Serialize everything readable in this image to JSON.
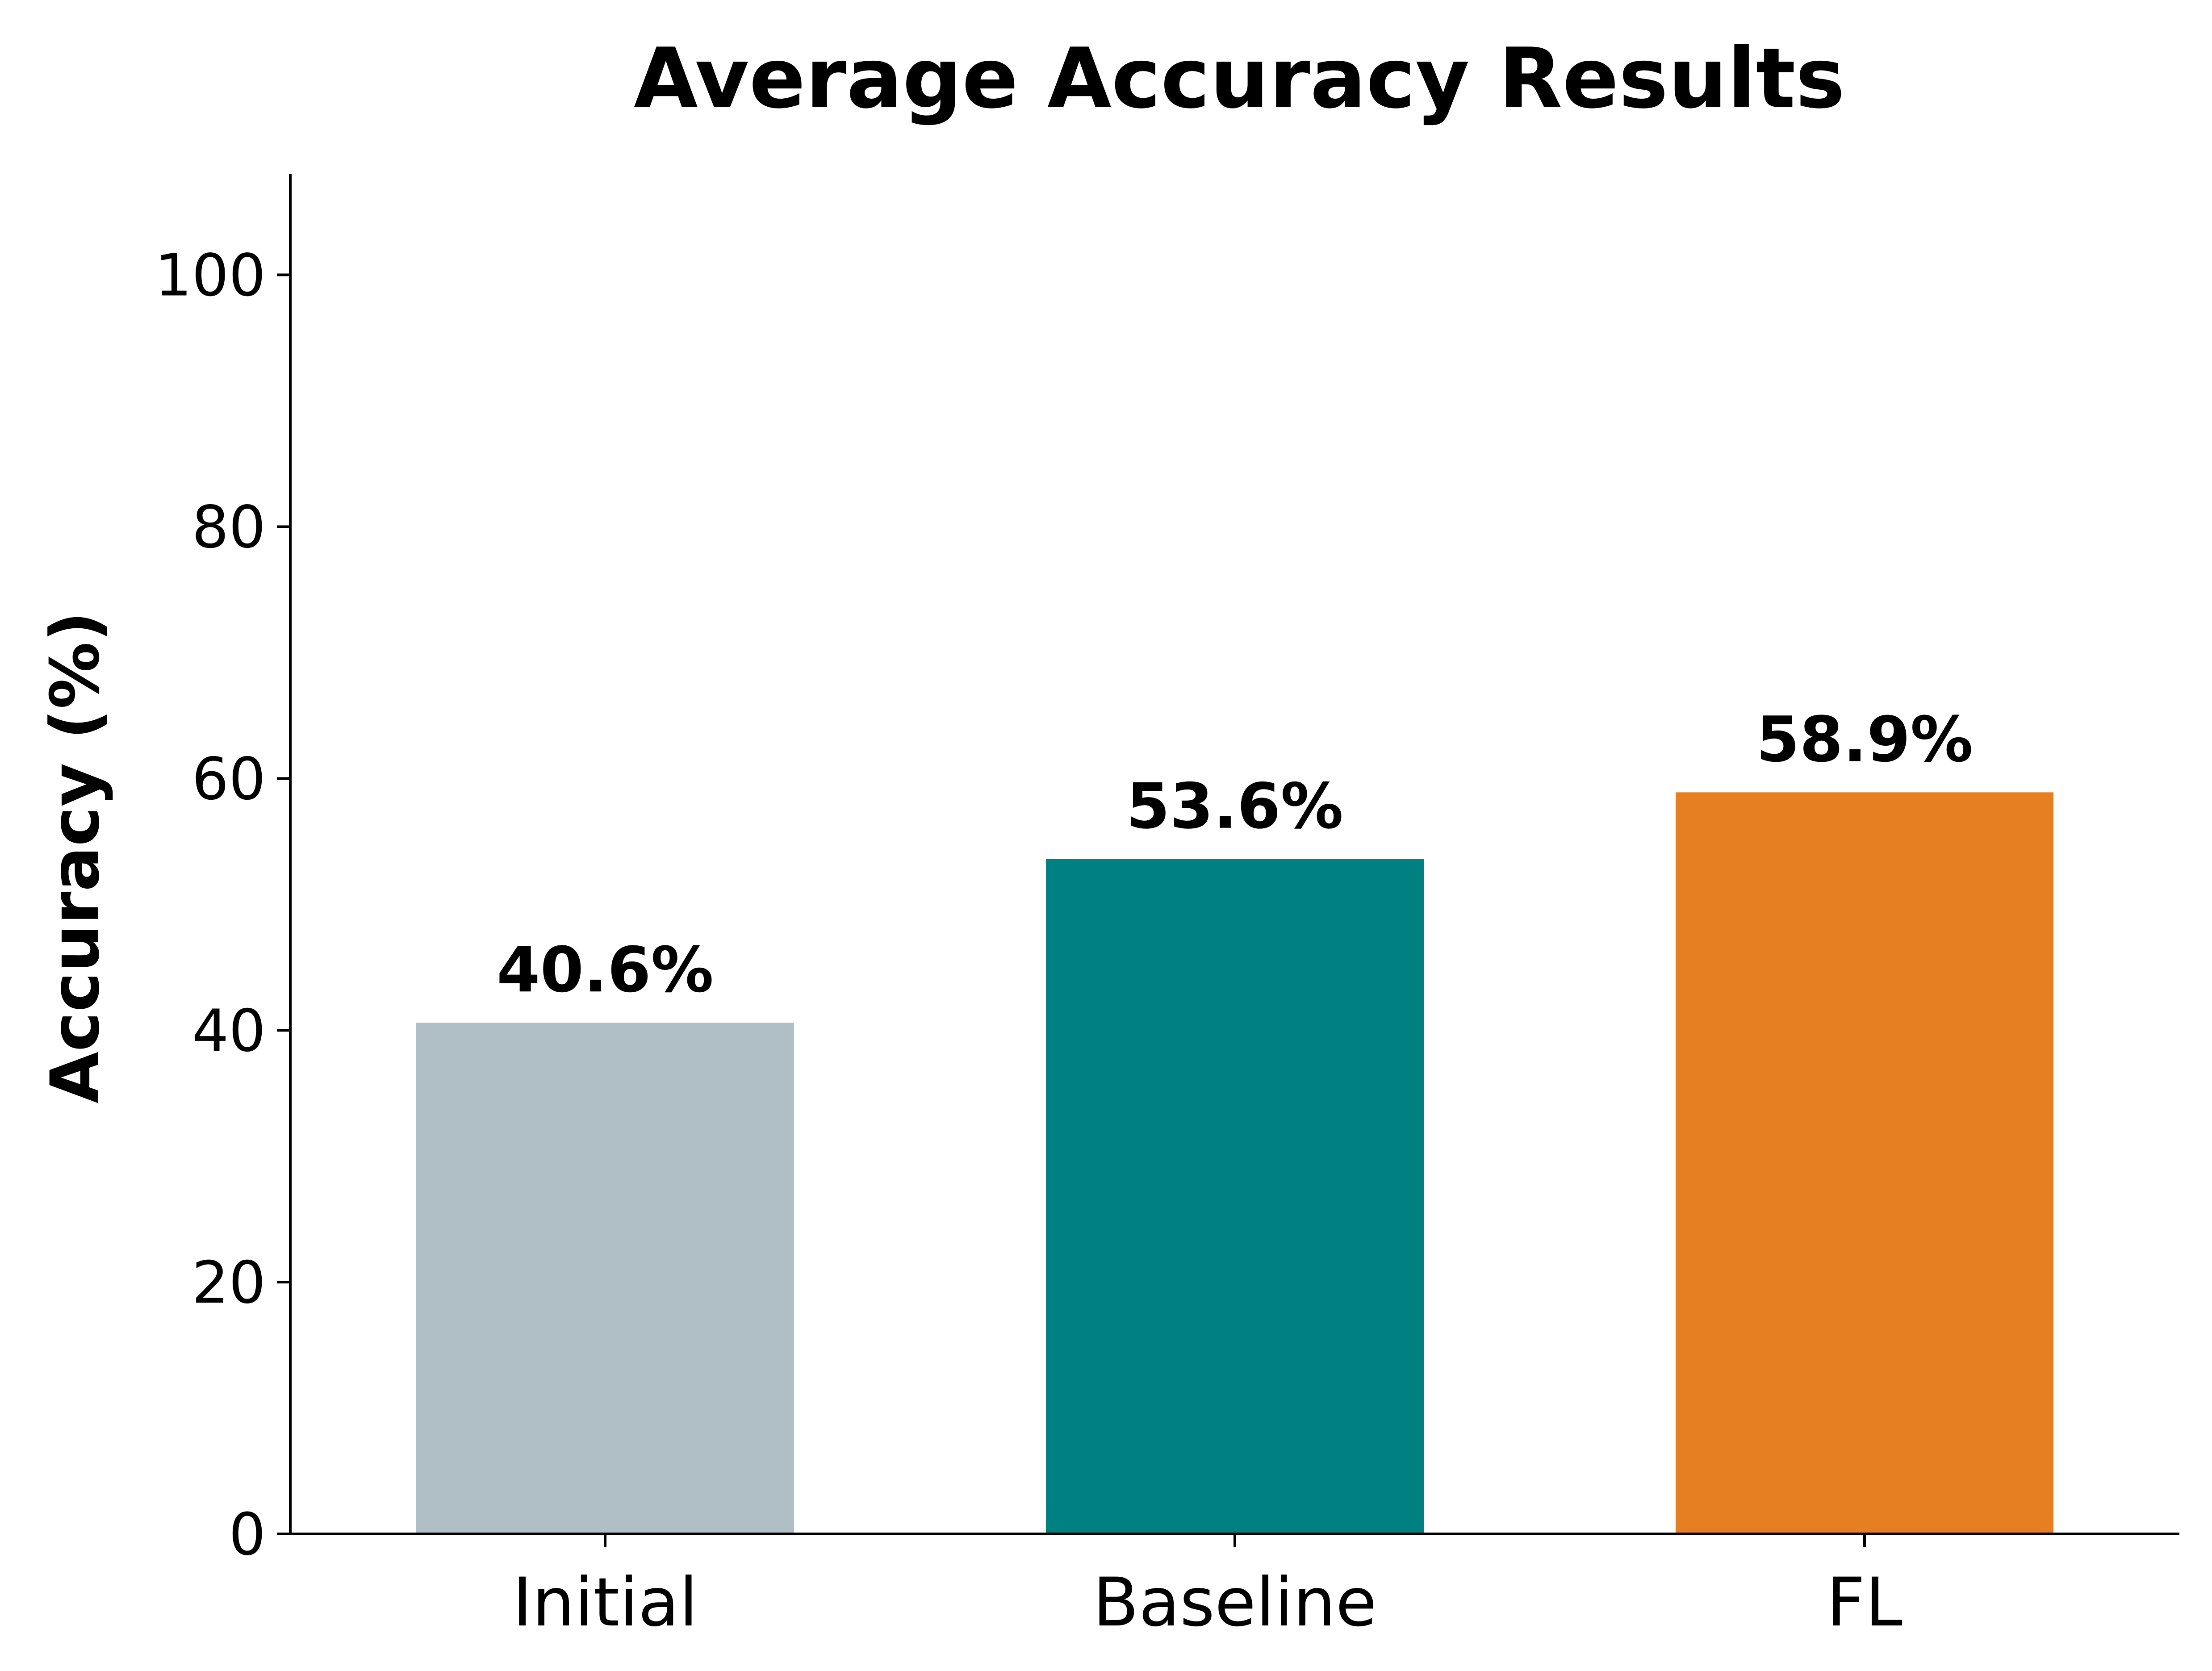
{
  "chart_data": {
    "type": "bar",
    "title": "Average Accuracy Results",
    "xlabel": "",
    "ylabel": "Accuracy (%)",
    "categories": [
      "Initial",
      "Baseline",
      "FL"
    ],
    "values": [
      40.6,
      53.6,
      58.9
    ],
    "value_labels": [
      "40.6%",
      "53.6%",
      "58.9%"
    ],
    "colors": [
      "#b0bec5",
      "#008080",
      "#e67e22"
    ],
    "ylim": [
      0,
      108
    ],
    "yticks": [
      0,
      20,
      40,
      60,
      80,
      100
    ],
    "grid": false,
    "legend": "none"
  }
}
